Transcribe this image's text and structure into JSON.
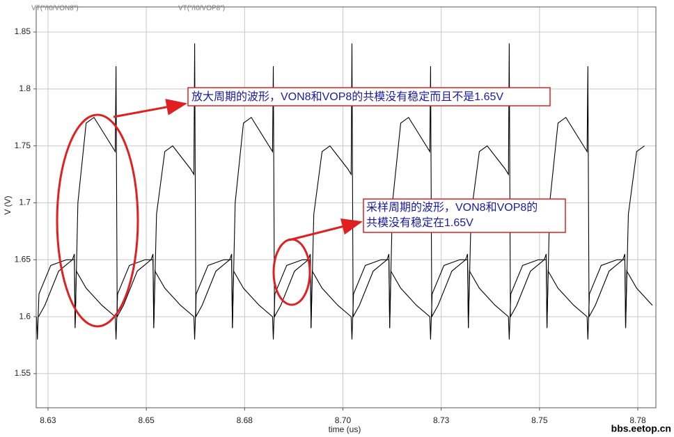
{
  "chart_data": {
    "type": "line",
    "ylabel": "V (V)",
    "xlabel": "time (us)",
    "xlim": [
      8.622,
      8.7796
    ],
    "ylim": [
      1.52,
      1.872
    ],
    "xticks": [
      {
        "value": 8.625,
        "label": "8.63"
      },
      8.65,
      {
        "value": 8.675,
        "label": "8.68"
      },
      {
        "value": 8.7,
        "label": "8.70"
      },
      {
        "value": 8.725,
        "label": "8.73"
      },
      8.75,
      {
        "value": 8.775,
        "label": "8.78"
      }
    ],
    "yticks": [
      1.55,
      1.6,
      1.65,
      1.7,
      1.75,
      1.8,
      1.85
    ],
    "grid": true,
    "series": [
      {
        "name": "VT(\"/I0/VON8\")",
        "color": "#000000",
        "x": [
          8.6221,
          8.6223,
          8.6227,
          8.6257,
          8.6297,
          8.6317,
          8.6319,
          8.6326,
          8.6347,
          8.6367,
          8.6412,
          8.6421,
          8.6423,
          8.6426,
          8.6442,
          8.6477,
          8.6512,
          8.6517,
          8.6519,
          8.6522,
          8.6547,
          8.6587,
          8.6621,
          8.6623,
          8.6627,
          8.6657,
          8.6697,
          8.6717,
          8.6719,
          8.6726,
          8.6747,
          8.6767,
          8.6812,
          8.6821,
          8.6823,
          8.6826,
          8.6842,
          8.6877,
          8.6912,
          8.6917,
          8.6919,
          8.6922,
          8.6947,
          8.6987,
          8.7021,
          8.7023,
          8.7027,
          8.7057,
          8.7097,
          8.7117,
          8.7119,
          8.7126,
          8.7147,
          8.7167,
          8.7212,
          8.7221,
          8.7223,
          8.7226,
          8.7242,
          8.7277,
          8.7312,
          8.7317,
          8.7319,
          8.7322,
          8.7347,
          8.7387,
          8.7421,
          8.7423,
          8.7427,
          8.7457,
          8.7497,
          8.7517,
          8.7519,
          8.7526,
          8.7547,
          8.7567,
          8.7612,
          8.7621,
          8.7623,
          8.7626,
          8.7642,
          8.7677,
          8.7712,
          8.7717,
          8.7719,
          8.7722,
          8.7747,
          8.7787
        ],
        "values": [
          1.6,
          1.58,
          1.62,
          1.645,
          1.65,
          1.65,
          1.59,
          1.7,
          1.77,
          1.775,
          1.75,
          1.745,
          1.82,
          1.6,
          1.61,
          1.64,
          1.65,
          1.655,
          1.59,
          1.64,
          1.625,
          1.61,
          1.6,
          1.58,
          1.62,
          1.645,
          1.65,
          1.65,
          1.59,
          1.7,
          1.77,
          1.775,
          1.75,
          1.745,
          1.82,
          1.6,
          1.61,
          1.64,
          1.65,
          1.655,
          1.59,
          1.64,
          1.625,
          1.61,
          1.6,
          1.58,
          1.62,
          1.645,
          1.65,
          1.65,
          1.59,
          1.7,
          1.77,
          1.775,
          1.75,
          1.745,
          1.82,
          1.6,
          1.61,
          1.64,
          1.65,
          1.655,
          1.59,
          1.64,
          1.625,
          1.61,
          1.6,
          1.58,
          1.62,
          1.645,
          1.65,
          1.65,
          1.59,
          1.7,
          1.77,
          1.775,
          1.75,
          1.745,
          1.82,
          1.6,
          1.61,
          1.64,
          1.65,
          1.655,
          1.59,
          1.64,
          1.625,
          1.61
        ]
      },
      {
        "name": "VT(\"/I0/VOP8\")",
        "color": "#000000",
        "x": [
          8.6226,
          8.6242,
          8.6277,
          8.6312,
          8.6317,
          8.6319,
          8.6322,
          8.6347,
          8.6387,
          8.6421,
          8.6423,
          8.6427,
          8.6457,
          8.6497,
          8.6517,
          8.6519,
          8.6526,
          8.6547,
          8.6567,
          8.6612,
          8.6621,
          8.6623,
          8.6626,
          8.6642,
          8.6677,
          8.6712,
          8.6717,
          8.6719,
          8.6722,
          8.6747,
          8.6787,
          8.6821,
          8.6823,
          8.6827,
          8.6857,
          8.6897,
          8.6917,
          8.6919,
          8.6926,
          8.6947,
          8.6967,
          8.7012,
          8.7021,
          8.7023,
          8.7026,
          8.7042,
          8.7077,
          8.7112,
          8.7117,
          8.7119,
          8.7122,
          8.7147,
          8.7187,
          8.7221,
          8.7223,
          8.7227,
          8.7257,
          8.7297,
          8.7317,
          8.7319,
          8.7326,
          8.7347,
          8.7367,
          8.7412,
          8.7421,
          8.7423,
          8.7426,
          8.7442,
          8.7477,
          8.7512,
          8.7517,
          8.7519,
          8.7522,
          8.7547,
          8.7587,
          8.7621,
          8.7623,
          8.7627,
          8.7657,
          8.7697,
          8.7717,
          8.7719,
          8.7726,
          8.7747,
          8.7767
        ],
        "values": [
          1.6,
          1.61,
          1.64,
          1.65,
          1.655,
          1.59,
          1.64,
          1.625,
          1.61,
          1.6,
          1.58,
          1.62,
          1.645,
          1.65,
          1.65,
          1.59,
          1.69,
          1.745,
          1.75,
          1.73,
          1.725,
          1.84,
          1.6,
          1.61,
          1.64,
          1.65,
          1.655,
          1.59,
          1.64,
          1.625,
          1.61,
          1.6,
          1.58,
          1.62,
          1.645,
          1.65,
          1.65,
          1.59,
          1.69,
          1.745,
          1.75,
          1.73,
          1.725,
          1.84,
          1.6,
          1.61,
          1.64,
          1.65,
          1.655,
          1.59,
          1.64,
          1.625,
          1.61,
          1.6,
          1.58,
          1.62,
          1.645,
          1.65,
          1.65,
          1.59,
          1.69,
          1.745,
          1.75,
          1.73,
          1.725,
          1.84,
          1.6,
          1.61,
          1.64,
          1.65,
          1.655,
          1.59,
          1.64,
          1.625,
          1.61,
          1.6,
          1.58,
          1.62,
          1.645,
          1.65,
          1.65,
          1.59,
          1.69,
          1.745,
          1.75
        ]
      }
    ],
    "annotations": [
      {
        "lines": [
          "放大周期的波形，VON8和VOP8的共模没有稳定而且不是1.65V"
        ]
      },
      {
        "lines": [
          "采样周期的波形，VON8和VOP8的",
          "共模没有稳定在1.65V"
        ]
      }
    ],
    "watermark": "bbs.eetop.cn"
  }
}
